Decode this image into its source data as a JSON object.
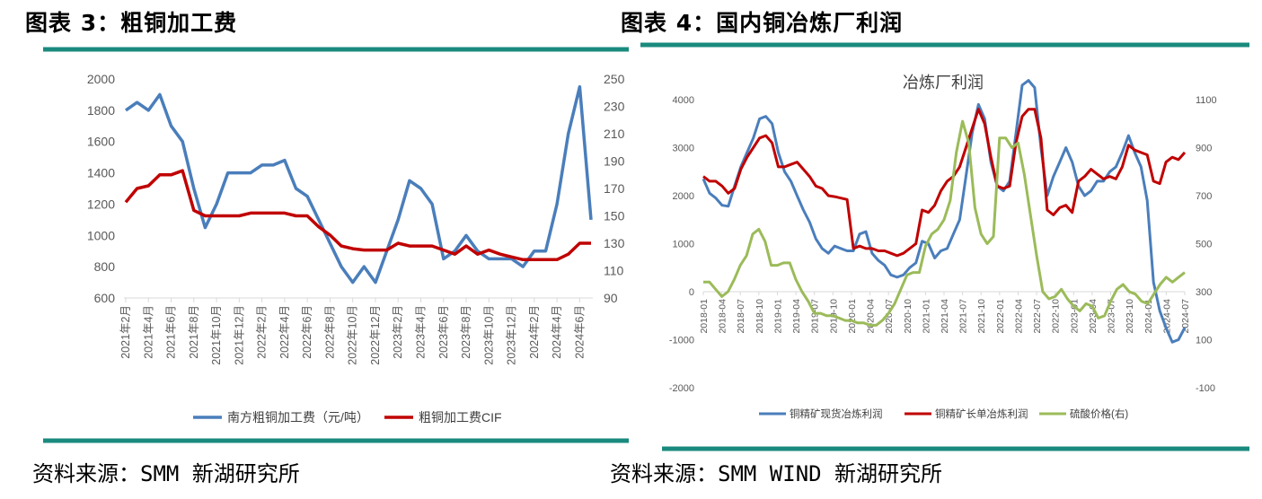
{
  "colors": {
    "divider": "#1a8a7e",
    "blue": "#4a7ebb",
    "red": "#c00000",
    "green": "#9bbb59",
    "axis": "#d9d9d9"
  },
  "left": {
    "fig_title": "图表 3：粗铜加工费",
    "source": "资料来源：SMM 新湖研究所"
  },
  "right": {
    "fig_title": "图表 4：国内铜冶炼厂利润",
    "source": "资料来源：SMM WIND 新湖研究所"
  },
  "chart_data": [
    {
      "type": "line",
      "title": "",
      "x": [
        "2021年2月",
        "2021年3月",
        "2021年4月",
        "2021年5月",
        "2021年6月",
        "2021年7月",
        "2021年8月",
        "2021年9月",
        "2021年10月",
        "2021年11月",
        "2021年12月",
        "2022年1月",
        "2022年2月",
        "2022年3月",
        "2022年4月",
        "2022年5月",
        "2022年6月",
        "2022年7月",
        "2022年8月",
        "2022年9月",
        "2022年10月",
        "2022年11月",
        "2022年12月",
        "2023年1月",
        "2023年2月",
        "2023年3月",
        "2023年4月",
        "2023年5月",
        "2023年6月",
        "2023年7月",
        "2023年8月",
        "2023年9月",
        "2023年10月",
        "2023年11月",
        "2023年12月",
        "2024年1月",
        "2024年2月",
        "2024年3月",
        "2024年4月",
        "2024年5月",
        "2024年6月",
        "2024年7月"
      ],
      "x_tick_labels": [
        "2021年2月",
        "2021年4月",
        "2021年6月",
        "2021年8月",
        "2021年10月",
        "2021年12月",
        "2022年2月",
        "2022年4月",
        "2022年6月",
        "2022年8月",
        "2022年10月",
        "2022年12月",
        "2023年2月",
        "2023年4月",
        "2023年6月",
        "2023年8月",
        "2023年10月",
        "2023年12月",
        "2024年2月",
        "2024年4月",
        "2024年6月"
      ],
      "y_left": {
        "lim": [
          600,
          2000
        ],
        "ticks": [
          600,
          800,
          1000,
          1200,
          1400,
          1600,
          1800,
          2000
        ]
      },
      "y_right": {
        "lim": [
          90,
          250
        ],
        "ticks": [
          90,
          110,
          130,
          150,
          170,
          190,
          210,
          230,
          250
        ]
      },
      "series": [
        {
          "name": "南方粗铜加工费（元/吨）",
          "axis": "left",
          "color": "#4a7ebb",
          "values": [
            1800,
            1850,
            1800,
            1900,
            1700,
            1600,
            1300,
            1050,
            1200,
            1400,
            1400,
            1400,
            1450,
            1450,
            1480,
            1300,
            1250,
            1100,
            950,
            800,
            700,
            800,
            700,
            900,
            1100,
            1350,
            1300,
            1200,
            850,
            900,
            1000,
            900,
            850,
            850,
            850,
            800,
            900,
            900,
            1200,
            1650,
            1950,
            1100
          ]
        },
        {
          "name": "粗铜加工费CIF",
          "axis": "right",
          "color": "#c00000",
          "values": [
            160,
            170,
            172,
            180,
            180,
            183,
            154,
            150,
            150,
            150,
            150,
            152,
            152,
            152,
            152,
            150,
            150,
            142,
            136,
            128,
            126,
            125,
            125,
            125,
            130,
            128,
            128,
            128,
            125,
            122,
            128,
            122,
            125,
            122,
            120,
            118,
            118,
            118,
            118,
            122,
            130,
            130
          ]
        }
      ],
      "legend": "bottom"
    },
    {
      "type": "line",
      "title": "冶炼厂利润",
      "x_tick_labels": [
        "2018-01",
        "2018-04",
        "2018-07",
        "2018-10",
        "2019-01",
        "2019-04",
        "2019-07",
        "2019-10",
        "2020-01",
        "2020-04",
        "2020-07",
        "2020-10",
        "2021-01",
        "2021-04",
        "2021-07",
        "2021-10",
        "2022-01",
        "2022-04",
        "2022-07",
        "2022-10",
        "2023-01",
        "2023-04",
        "2023-07",
        "2023-10",
        "2024-01",
        "2024-04",
        "2024-07"
      ],
      "x_range": [
        "2018-01",
        "2024-07"
      ],
      "y_left": {
        "lim": [
          -2000,
          4000
        ],
        "ticks": [
          -2000,
          -1000,
          0,
          1000,
          2000,
          3000,
          4000
        ]
      },
      "y_right": {
        "lim": [
          -100,
          1100
        ],
        "ticks": [
          -100,
          100,
          300,
          500,
          700,
          900,
          1100
        ]
      },
      "series": [
        {
          "name": "铜精矿现货冶炼利润",
          "axis": "left",
          "color": "#4a7ebb",
          "values": [
            2350,
            2050,
            1950,
            1800,
            1780,
            2200,
            2600,
            2900,
            3200,
            3600,
            3650,
            3500,
            2900,
            2500,
            2300,
            2000,
            1700,
            1450,
            1100,
            900,
            800,
            950,
            900,
            850,
            850,
            1200,
            1250,
            800,
            650,
            550,
            350,
            300,
            350,
            500,
            600,
            1050,
            1000,
            700,
            850,
            900,
            1200,
            1500,
            2400,
            3300,
            3900,
            3600,
            2700,
            2200,
            2100,
            2300,
            3300,
            4300,
            4400,
            4250,
            3000,
            2000,
            2400,
            2700,
            3000,
            2700,
            2200,
            2000,
            2100,
            2300,
            2300,
            2500,
            2600,
            2900,
            3250,
            2900,
            2600,
            1900,
            200,
            -400,
            -750,
            -1050,
            -1000,
            -750
          ]
        },
        {
          "name": "铜精矿长单冶炼利润",
          "axis": "left",
          "color": "#c00000",
          "values": [
            2400,
            2300,
            2300,
            2200,
            2050,
            2150,
            2550,
            2800,
            3000,
            3200,
            3250,
            3100,
            2600,
            2600,
            2650,
            2700,
            2550,
            2400,
            2200,
            2150,
            2000,
            1980,
            1950,
            1920,
            900,
            950,
            900,
            900,
            850,
            850,
            800,
            750,
            800,
            900,
            1000,
            1700,
            1650,
            1800,
            2100,
            2300,
            2400,
            2600,
            3000,
            3400,
            3800,
            3500,
            2800,
            2200,
            2150,
            2200,
            3100,
            3650,
            3800,
            3800,
            3200,
            1700,
            1600,
            1750,
            1800,
            1650,
            2300,
            2400,
            2550,
            2450,
            2350,
            2400,
            2350,
            2600,
            3050,
            2950,
            2900,
            2850,
            2300,
            2250,
            2700,
            2800,
            2750,
            2900
          ]
        },
        {
          "name": "硫酸价格(右)",
          "axis": "right",
          "color": "#9bbb59",
          "values": [
            340,
            340,
            310,
            280,
            300,
            350,
            410,
            450,
            540,
            560,
            510,
            410,
            410,
            420,
            420,
            350,
            300,
            260,
            210,
            210,
            200,
            200,
            190,
            180,
            180,
            170,
            170,
            160,
            160,
            180,
            210,
            250,
            310,
            370,
            380,
            380,
            490,
            540,
            560,
            600,
            680,
            880,
            1010,
            920,
            650,
            540,
            500,
            530,
            940,
            940,
            900,
            920,
            790,
            620,
            450,
            300,
            270,
            280,
            310,
            270,
            240,
            220,
            250,
            240,
            190,
            200,
            260,
            310,
            330,
            300,
            290,
            260,
            250,
            290,
            330,
            360,
            340,
            360,
            380
          ]
        }
      ],
      "legend": "bottom"
    }
  ]
}
